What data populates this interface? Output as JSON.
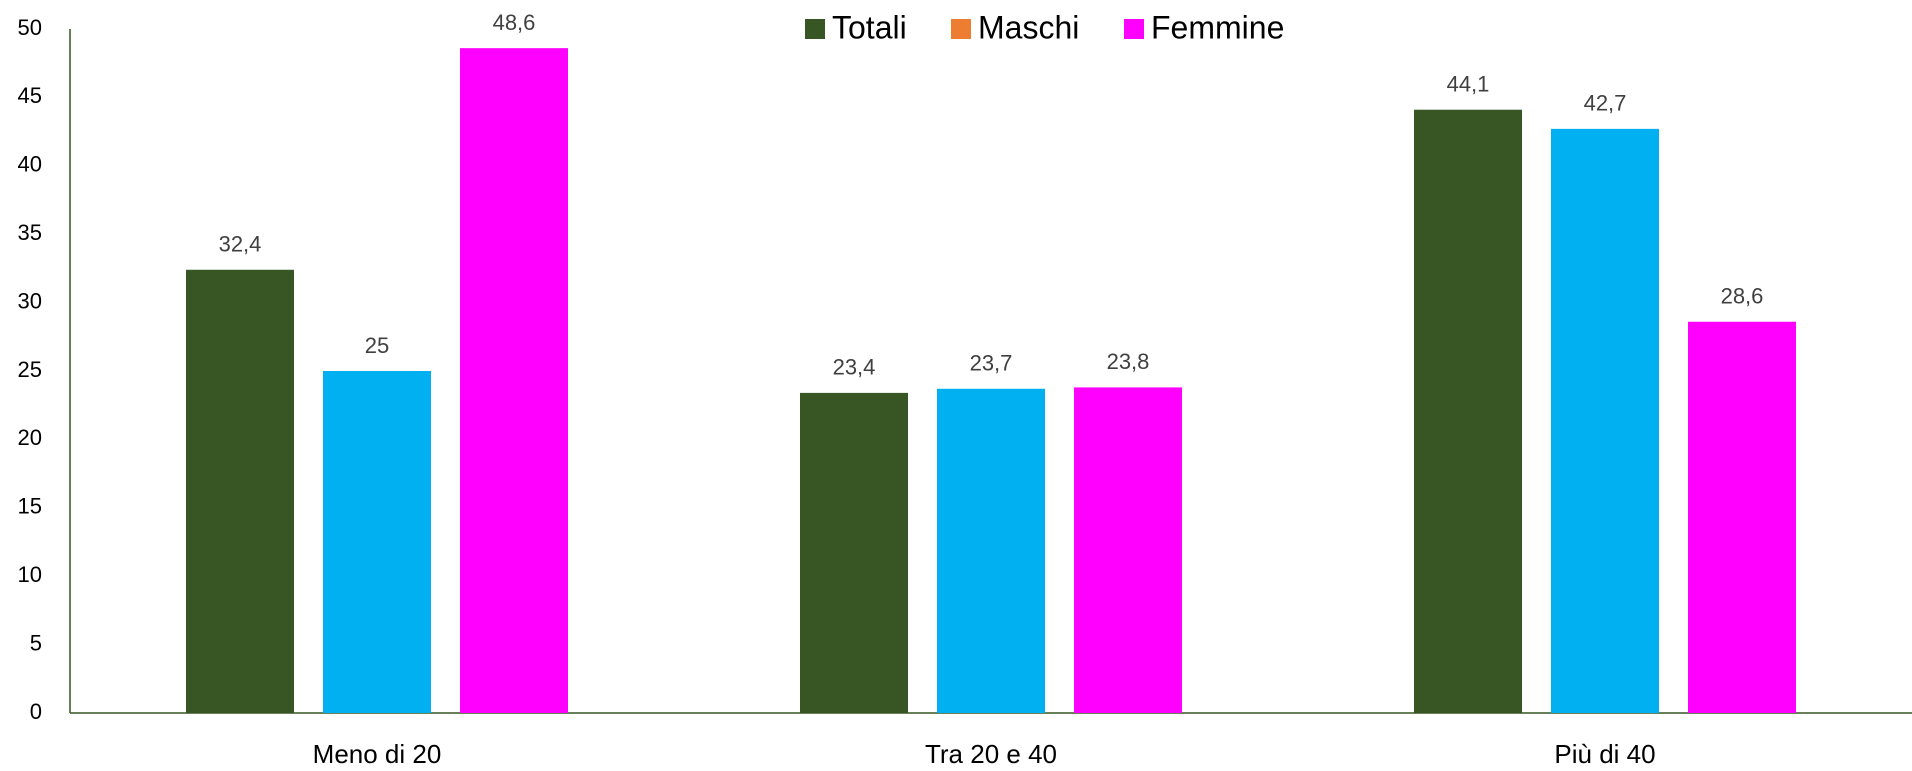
{
  "chart_data": {
    "type": "bar",
    "categories": [
      "Meno di 20",
      "Tra 20 e 40",
      "Più di 40"
    ],
    "series": [
      {
        "name": "Totali",
        "color": "#375623",
        "legend_color": "#375623",
        "values": [
          32.4,
          23.4,
          44.1
        ],
        "value_labels": [
          "32,4",
          "23,4",
          "44,1"
        ]
      },
      {
        "name": "Maschi",
        "color": "#00b0f0",
        "legend_color": "#ed7d31",
        "values": [
          25,
          23.7,
          42.7
        ],
        "value_labels": [
          "25",
          "23,7",
          "42,7"
        ]
      },
      {
        "name": "Femmine",
        "color": "#ff00ff",
        "legend_color": "#ff00ff",
        "values": [
          48.6,
          23.8,
          28.6
        ],
        "value_labels": [
          "48,6",
          "23,8",
          "28,6"
        ]
      }
    ],
    "ylim": [
      0,
      50
    ],
    "yticks": [
      0,
      5,
      10,
      15,
      20,
      25,
      30,
      35,
      40,
      45,
      50
    ],
    "grid": false,
    "legend": "top"
  }
}
